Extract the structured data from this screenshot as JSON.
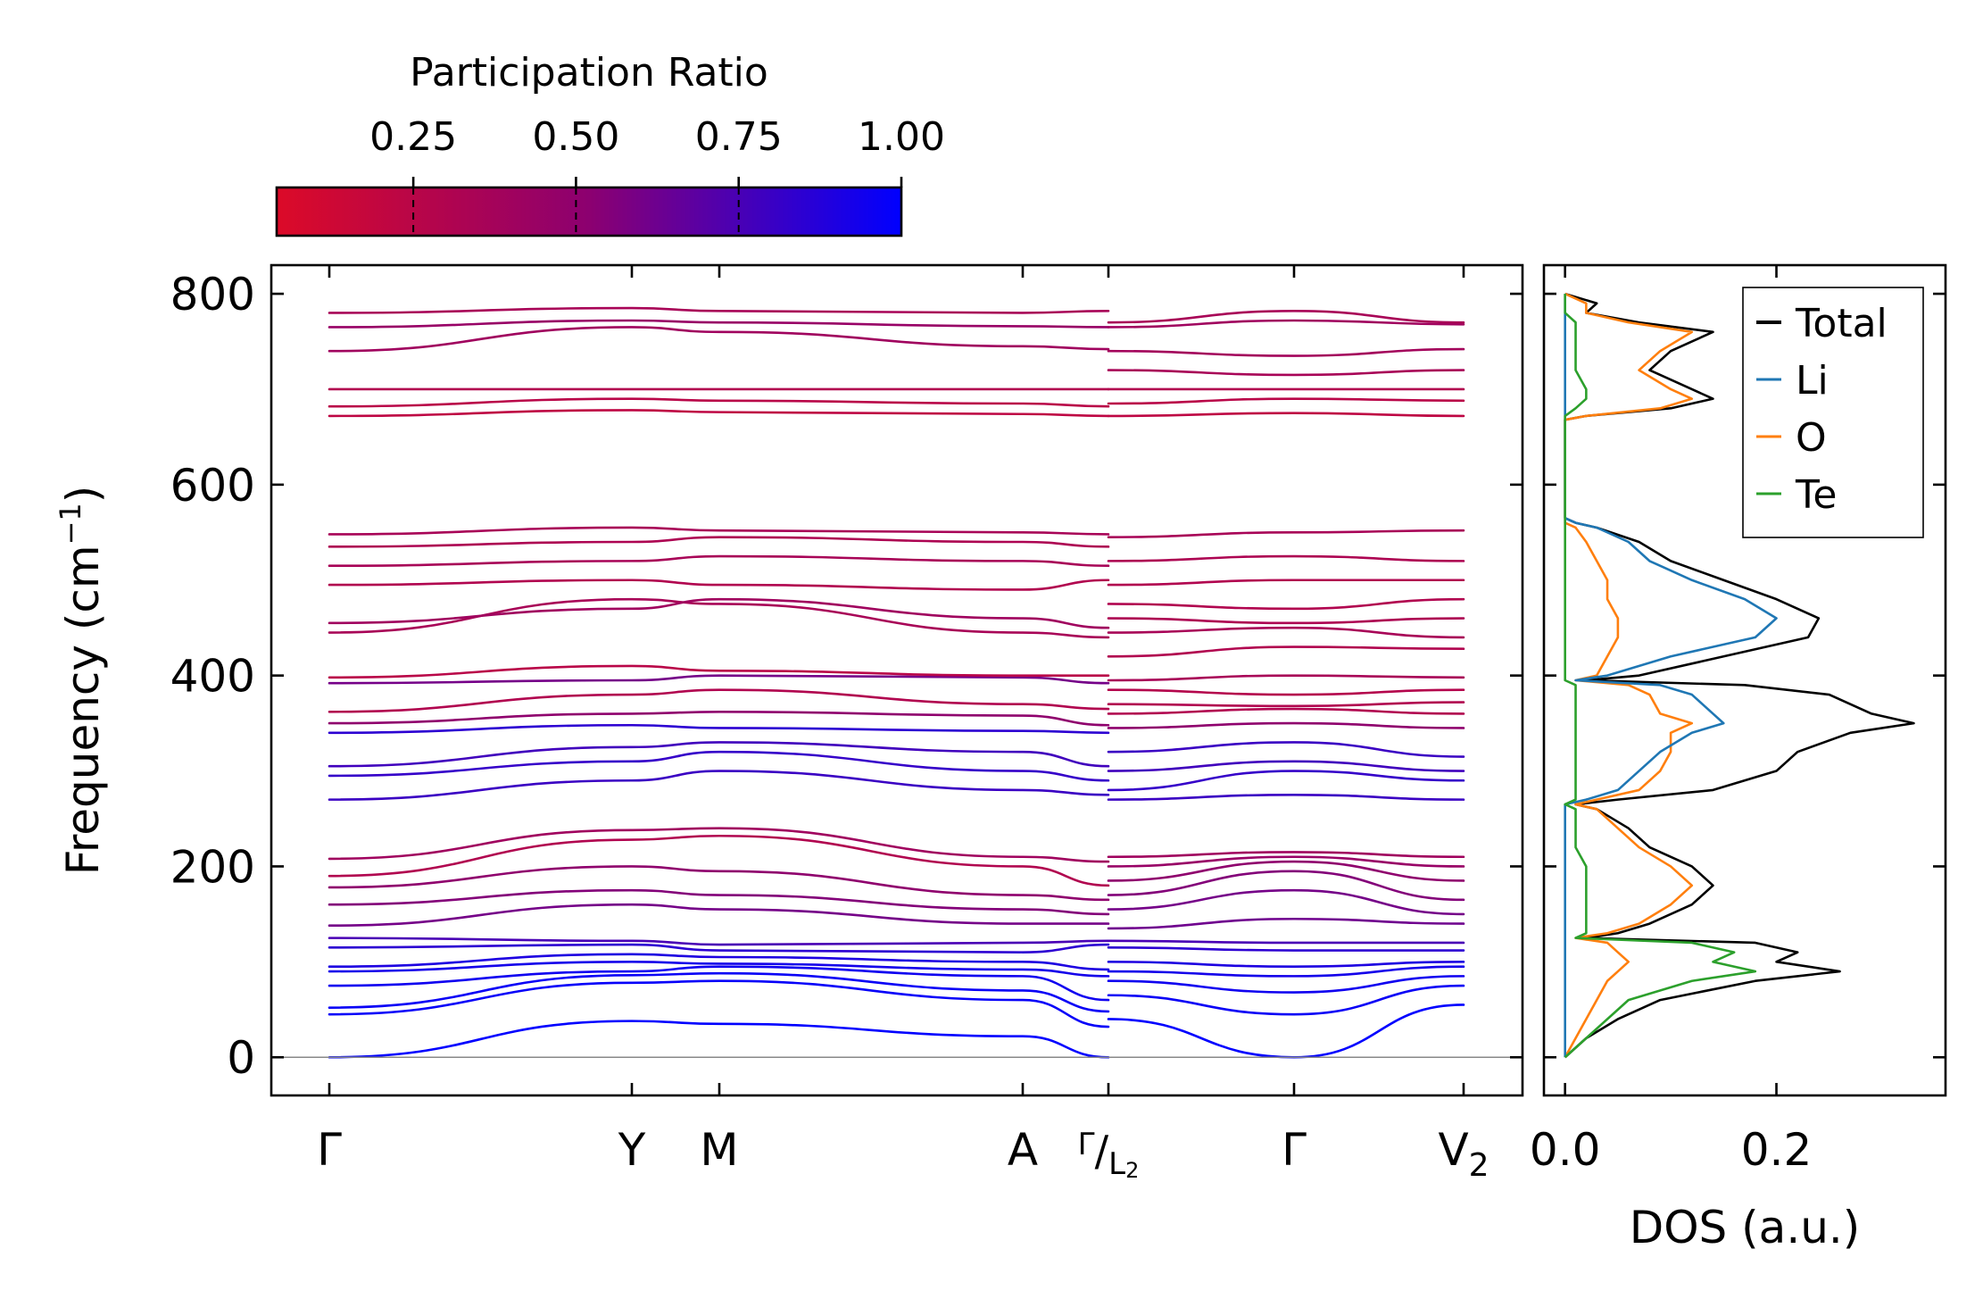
{
  "chart_data": [
    {
      "type": "line",
      "name": "phonon-band-structure",
      "title": "",
      "xlabel": "",
      "ylabel_main": "Frequency (cm",
      "ylabel_sup": "−1",
      "ylabel_tail": ")",
      "ylim": [
        -40,
        830
      ],
      "yticks": [
        0,
        200,
        400,
        600,
        800
      ],
      "ytick_labels": [
        "0",
        "200",
        "400",
        "600",
        "800"
      ],
      "kpath_labels": [
        {
          "label": "Γ",
          "sub": ""
        },
        {
          "label": "Y",
          "sub": ""
        },
        {
          "label": "M",
          "sub": ""
        },
        {
          "label": "A",
          "sub": ""
        },
        {
          "label": "Γ/L",
          "sub": "2"
        },
        {
          "label": "Γ",
          "sub": ""
        },
        {
          "label": "V",
          "sub": "2"
        }
      ],
      "segments": [
        {
          "name": "Γ-Y-M-A-Γ",
          "bands": [
            {
              "freq": [
                0,
                38,
                35,
                22,
                0
              ],
              "pr": 1.0
            },
            {
              "freq": [
                45,
                78,
                80,
                60,
                32
              ],
              "pr": 0.98
            },
            {
              "freq": [
                52,
                86,
                88,
                70,
                48
              ],
              "pr": 0.97
            },
            {
              "freq": [
                75,
                90,
                95,
                85,
                60
              ],
              "pr": 0.95
            },
            {
              "freq": [
                90,
                100,
                98,
                92,
                85
              ],
              "pr": 0.93
            },
            {
              "freq": [
                95,
                108,
                105,
                100,
                92
              ],
              "pr": 0.9
            },
            {
              "freq": [
                115,
                118,
                112,
                110,
                118
              ],
              "pr": 0.85
            },
            {
              "freq": [
                125,
                122,
                118,
                120,
                122
              ],
              "pr": 0.75
            },
            {
              "freq": [
                138,
                160,
                155,
                140,
                140
              ],
              "pr": 0.6
            },
            {
              "freq": [
                160,
                175,
                170,
                155,
                150
              ],
              "pr": 0.55
            },
            {
              "freq": [
                178,
                200,
                195,
                170,
                165
              ],
              "pr": 0.5
            },
            {
              "freq": [
                190,
                228,
                232,
                200,
                180
              ],
              "pr": 0.3
            },
            {
              "freq": [
                208,
                238,
                240,
                210,
                205
              ],
              "pr": 0.4
            },
            {
              "freq": [
                270,
                290,
                300,
                280,
                275
              ],
              "pr": 0.8
            },
            {
              "freq": [
                295,
                310,
                320,
                300,
                290
              ],
              "pr": 0.82
            },
            {
              "freq": [
                305,
                325,
                330,
                320,
                305
              ],
              "pr": 0.78
            },
            {
              "freq": [
                340,
                348,
                345,
                342,
                340
              ],
              "pr": 0.85
            },
            {
              "freq": [
                350,
                360,
                362,
                358,
                348
              ],
              "pr": 0.5
            },
            {
              "freq": [
                362,
                380,
                385,
                370,
                365
              ],
              "pr": 0.3
            },
            {
              "freq": [
                392,
                395,
                400,
                398,
                392
              ],
              "pr": 0.6
            },
            {
              "freq": [
                398,
                410,
                405,
                400,
                400
              ],
              "pr": 0.25
            },
            {
              "freq": [
                445,
                480,
                475,
                445,
                440
              ],
              "pr": 0.35
            },
            {
              "freq": [
                455,
                470,
                480,
                460,
                450
              ],
              "pr": 0.4
            },
            {
              "freq": [
                495,
                500,
                495,
                490,
                500
              ],
              "pr": 0.3
            },
            {
              "freq": [
                515,
                520,
                525,
                520,
                515
              ],
              "pr": 0.35
            },
            {
              "freq": [
                535,
                540,
                545,
                540,
                535
              ],
              "pr": 0.32
            },
            {
              "freq": [
                548,
                555,
                552,
                550,
                548
              ],
              "pr": 0.35
            },
            {
              "freq": [
                672,
                678,
                676,
                674,
                672
              ],
              "pr": 0.22
            },
            {
              "freq": [
                682,
                690,
                688,
                685,
                682
              ],
              "pr": 0.25
            },
            {
              "freq": [
                700,
                700,
                700,
                700,
                700
              ],
              "pr": 0.3
            },
            {
              "freq": [
                740,
                765,
                760,
                745,
                742
              ],
              "pr": 0.4
            },
            {
              "freq": [
                765,
                772,
                770,
                766,
                765
              ],
              "pr": 0.45
            },
            {
              "freq": [
                780,
                785,
                782,
                780,
                782
              ],
              "pr": 0.35
            }
          ]
        },
        {
          "name": "L2-Γ-V2",
          "bands": [
            {
              "freq": [
                40,
                0,
                55
              ],
              "pr": 1.0
            },
            {
              "freq": [
                65,
                45,
                75
              ],
              "pr": 0.97
            },
            {
              "freq": [
                80,
                68,
                85
              ],
              "pr": 0.95
            },
            {
              "freq": [
                90,
                85,
                95
              ],
              "pr": 0.93
            },
            {
              "freq": [
                100,
                95,
                100
              ],
              "pr": 0.9
            },
            {
              "freq": [
                115,
                112,
                112
              ],
              "pr": 0.85
            },
            {
              "freq": [
                122,
                120,
                120
              ],
              "pr": 0.75
            },
            {
              "freq": [
                135,
                145,
                140
              ],
              "pr": 0.62
            },
            {
              "freq": [
                155,
                175,
                150
              ],
              "pr": 0.6
            },
            {
              "freq": [
                170,
                195,
                165
              ],
              "pr": 0.55
            },
            {
              "freq": [
                185,
                205,
                185
              ],
              "pr": 0.5
            },
            {
              "freq": [
                200,
                210,
                200
              ],
              "pr": 0.45
            },
            {
              "freq": [
                210,
                215,
                210
              ],
              "pr": 0.4
            },
            {
              "freq": [
                270,
                275,
                270
              ],
              "pr": 0.8
            },
            {
              "freq": [
                280,
                300,
                290
              ],
              "pr": 0.82
            },
            {
              "freq": [
                300,
                310,
                300
              ],
              "pr": 0.78
            },
            {
              "freq": [
                320,
                330,
                315
              ],
              "pr": 0.8
            },
            {
              "freq": [
                345,
                350,
                345
              ],
              "pr": 0.5
            },
            {
              "freq": [
                360,
                365,
                360
              ],
              "pr": 0.3
            },
            {
              "freq": [
                370,
                368,
                372
              ],
              "pr": 0.3
            },
            {
              "freq": [
                385,
                380,
                385
              ],
              "pr": 0.28
            },
            {
              "freq": [
                395,
                400,
                398
              ],
              "pr": 0.35
            },
            {
              "freq": [
                420,
                430,
                428
              ],
              "pr": 0.3
            },
            {
              "freq": [
                445,
                450,
                440
              ],
              "pr": 0.35
            },
            {
              "freq": [
                460,
                455,
                460
              ],
              "pr": 0.32
            },
            {
              "freq": [
                475,
                470,
                480
              ],
              "pr": 0.3
            },
            {
              "freq": [
                495,
                500,
                500
              ],
              "pr": 0.3
            },
            {
              "freq": [
                520,
                525,
                520
              ],
              "pr": 0.32
            },
            {
              "freq": [
                545,
                550,
                552
              ],
              "pr": 0.35
            },
            {
              "freq": [
                672,
                675,
                672
              ],
              "pr": 0.22
            },
            {
              "freq": [
                685,
                690,
                688
              ],
              "pr": 0.25
            },
            {
              "freq": [
                700,
                700,
                700
              ],
              "pr": 0.3
            },
            {
              "freq": [
                720,
                715,
                720
              ],
              "pr": 0.35
            },
            {
              "freq": [
                740,
                735,
                742
              ],
              "pr": 0.38
            },
            {
              "freq": [
                765,
                772,
                768
              ],
              "pr": 0.4
            },
            {
              "freq": [
                770,
                782,
                770
              ],
              "pr": 0.35
            }
          ]
        }
      ]
    },
    {
      "type": "line",
      "name": "density-of-states",
      "xlabel": "DOS (a.u.)",
      "xlim": [
        -0.02,
        0.36
      ],
      "xticks": [
        0.0,
        0.2
      ],
      "xtick_labels": [
        "0.0",
        "0.2"
      ],
      "ylim": [
        -40,
        830
      ],
      "freq": [
        0,
        20,
        40,
        60,
        80,
        90,
        100,
        110,
        120,
        125,
        130,
        140,
        160,
        180,
        200,
        220,
        240,
        260,
        265,
        270,
        280,
        300,
        320,
        340,
        350,
        360,
        380,
        390,
        395,
        400,
        420,
        440,
        460,
        480,
        500,
        520,
        540,
        555,
        560,
        565,
        600,
        660,
        668,
        672,
        680,
        690,
        700,
        720,
        740,
        760,
        770,
        780,
        790,
        800
      ],
      "series": [
        {
          "name": "Total",
          "color": "#000000",
          "values": [
            0.0,
            0.02,
            0.05,
            0.09,
            0.18,
            0.26,
            0.2,
            0.22,
            0.18,
            0.02,
            0.05,
            0.08,
            0.12,
            0.14,
            0.12,
            0.08,
            0.06,
            0.03,
            0.01,
            0.05,
            0.14,
            0.2,
            0.22,
            0.27,
            0.33,
            0.29,
            0.25,
            0.17,
            0.02,
            0.07,
            0.15,
            0.23,
            0.24,
            0.2,
            0.15,
            0.1,
            0.07,
            0.03,
            0.01,
            0.0,
            0.0,
            0.0,
            0.0,
            0.02,
            0.1,
            0.14,
            0.12,
            0.08,
            0.1,
            0.14,
            0.07,
            0.02,
            0.03,
            0.0
          ]
        },
        {
          "name": "Li",
          "color": "#1f77b4",
          "values": [
            0.0,
            0.0,
            0.0,
            0.0,
            0.0,
            0.0,
            0.0,
            0.0,
            0.0,
            0.0,
            0.0,
            0.0,
            0.0,
            0.0,
            0.0,
            0.0,
            0.0,
            0.0,
            0.0,
            0.02,
            0.05,
            0.07,
            0.09,
            0.12,
            0.15,
            0.14,
            0.12,
            0.09,
            0.01,
            0.04,
            0.1,
            0.18,
            0.2,
            0.17,
            0.12,
            0.08,
            0.06,
            0.03,
            0.01,
            0.0,
            0.0,
            0.0,
            0.0,
            0.0,
            0.0,
            0.0,
            0.0,
            0.0,
            0.0,
            0.0,
            0.0,
            0.0,
            0.0,
            0.0
          ]
        },
        {
          "name": "O",
          "color": "#ff7f0e",
          "values": [
            0.0,
            0.01,
            0.02,
            0.03,
            0.04,
            0.05,
            0.06,
            0.05,
            0.04,
            0.01,
            0.04,
            0.07,
            0.1,
            0.12,
            0.1,
            0.07,
            0.05,
            0.03,
            0.01,
            0.03,
            0.07,
            0.09,
            0.1,
            0.1,
            0.12,
            0.09,
            0.08,
            0.06,
            0.01,
            0.03,
            0.04,
            0.05,
            0.05,
            0.04,
            0.04,
            0.03,
            0.02,
            0.01,
            0.0,
            0.0,
            0.0,
            0.0,
            0.0,
            0.02,
            0.09,
            0.12,
            0.1,
            0.07,
            0.09,
            0.12,
            0.06,
            0.02,
            0.02,
            0.0
          ]
        },
        {
          "name": "Te",
          "color": "#2ca02c",
          "values": [
            0.0,
            0.02,
            0.04,
            0.06,
            0.12,
            0.18,
            0.14,
            0.16,
            0.12,
            0.01,
            0.02,
            0.02,
            0.02,
            0.02,
            0.02,
            0.01,
            0.01,
            0.01,
            0.0,
            0.01,
            0.01,
            0.01,
            0.01,
            0.01,
            0.01,
            0.01,
            0.01,
            0.01,
            0.0,
            0.0,
            0.0,
            0.0,
            0.0,
            0.0,
            0.0,
            0.0,
            0.0,
            0.0,
            0.0,
            0.0,
            0.0,
            0.0,
            0.0,
            0.0,
            0.01,
            0.02,
            0.02,
            0.01,
            0.01,
            0.01,
            0.01,
            0.0,
            0.0,
            0.0
          ]
        }
      ],
      "legend_position": "top-right"
    },
    {
      "type": "colorbar",
      "name": "participation-ratio-colorbar",
      "title": "Participation Ratio",
      "range": [
        0.04,
        1.0
      ],
      "ticks": [
        0.25,
        0.5,
        0.75,
        1.0
      ],
      "tick_labels": [
        "0.25",
        "0.50",
        "0.75",
        "1.00"
      ],
      "colors": [
        "#dc0a28",
        "#8c0070",
        "#0000ff"
      ]
    }
  ]
}
